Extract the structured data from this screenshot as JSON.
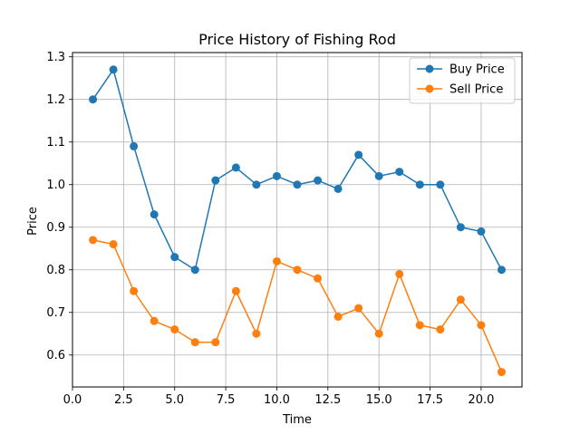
{
  "chart_data": {
    "type": "line",
    "title": "Price History of Fishing Rod",
    "xlabel": "Time",
    "ylabel": "Price",
    "xlim": [
      0,
      22
    ],
    "ylim": [
      0.525,
      1.31
    ],
    "xticks": [
      0,
      2.5,
      5,
      7.5,
      10,
      12.5,
      15,
      17.5,
      20
    ],
    "xtick_labels": [
      "0.0",
      "2.5",
      "5.0",
      "7.5",
      "10.0",
      "12.5",
      "15.0",
      "17.5",
      "20.0"
    ],
    "yticks": [
      0.6,
      0.7,
      0.8,
      0.9,
      1.0,
      1.1,
      1.2,
      1.3
    ],
    "ytick_labels": [
      "0.6",
      "0.7",
      "0.8",
      "0.9",
      "1.0",
      "1.1",
      "1.2",
      "1.3"
    ],
    "grid": true,
    "legend_position": "top-right",
    "x": [
      1,
      2,
      3,
      4,
      5,
      6,
      7,
      8,
      9,
      10,
      11,
      12,
      13,
      14,
      15,
      16,
      17,
      18,
      19,
      20,
      21
    ],
    "series": [
      {
        "name": "Buy Price",
        "color": "#1f77b4",
        "values": [
          1.2,
          1.27,
          1.09,
          0.93,
          0.83,
          0.8,
          1.01,
          1.04,
          1.0,
          1.02,
          1.0,
          1.01,
          0.99,
          1.07,
          1.02,
          1.03,
          1.0,
          1.0,
          0.9,
          0.89,
          0.8
        ]
      },
      {
        "name": "Sell Price",
        "color": "#ff7f0e",
        "values": [
          0.87,
          0.86,
          0.75,
          0.68,
          0.66,
          0.63,
          0.63,
          0.75,
          0.65,
          0.82,
          0.8,
          0.78,
          0.69,
          0.71,
          0.65,
          0.79,
          0.67,
          0.66,
          0.73,
          0.67,
          0.56
        ]
      }
    ]
  }
}
